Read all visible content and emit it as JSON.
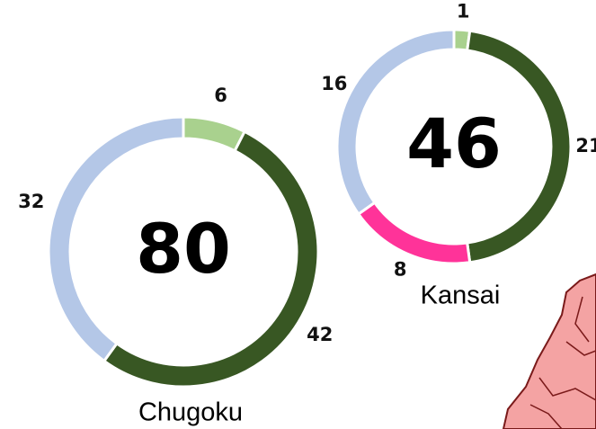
{
  "chart_data": [
    {
      "type": "donut",
      "title": "Chugoku",
      "total": 80,
      "values": [
        6,
        42,
        32
      ],
      "colors": [
        "#a9d18e",
        "#385723",
        "#b4c7e7"
      ]
    },
    {
      "type": "donut",
      "title": "Kansai",
      "total": 46,
      "values": [
        1,
        21,
        8,
        16
      ],
      "colors": [
        "#a9d18e",
        "#385723",
        "#ff3399",
        "#b4c7e7"
      ]
    }
  ]
}
